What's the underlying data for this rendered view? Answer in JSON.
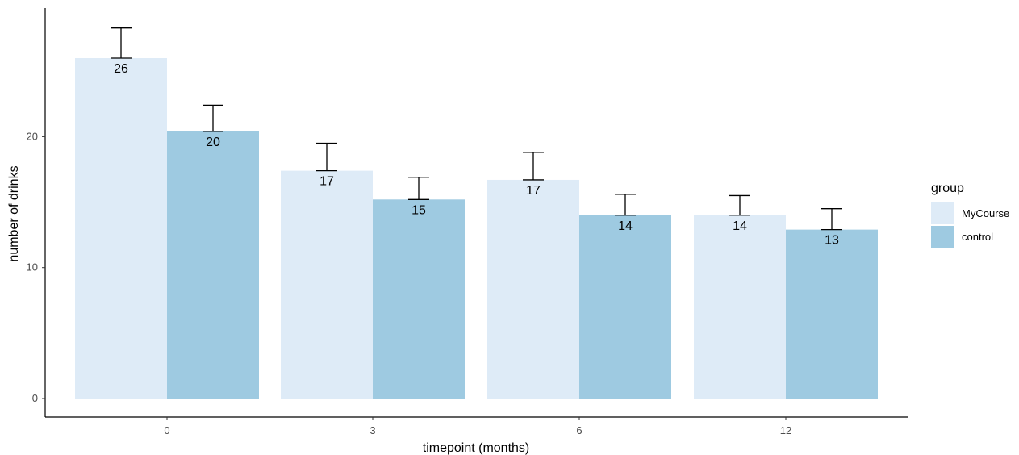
{
  "chart_data": {
    "type": "bar",
    "categories": [
      "0",
      "3",
      "6",
      "12"
    ],
    "series": [
      {
        "name": "MyCourse",
        "values": [
          26,
          17.4,
          16.7,
          14
        ],
        "error_upper": [
          28.3,
          19.5,
          18.8,
          15.5
        ],
        "labels": [
          "26",
          "17",
          "17",
          "14"
        ],
        "color": "#deebf7"
      },
      {
        "name": "control",
        "values": [
          20.4,
          15.2,
          14,
          12.9
        ],
        "error_upper": [
          22.4,
          16.9,
          15.6,
          14.5
        ],
        "labels": [
          "20",
          "15",
          "14",
          "13"
        ],
        "color": "#9ecae1"
      }
    ],
    "xlabel": "timepoint (months)",
    "ylabel": "number of drinks",
    "ylim": [
      0,
      29
    ],
    "yticks": [
      "0",
      "10",
      "20"
    ],
    "grid": false,
    "legend": {
      "title": "group",
      "placement": "right"
    }
  }
}
